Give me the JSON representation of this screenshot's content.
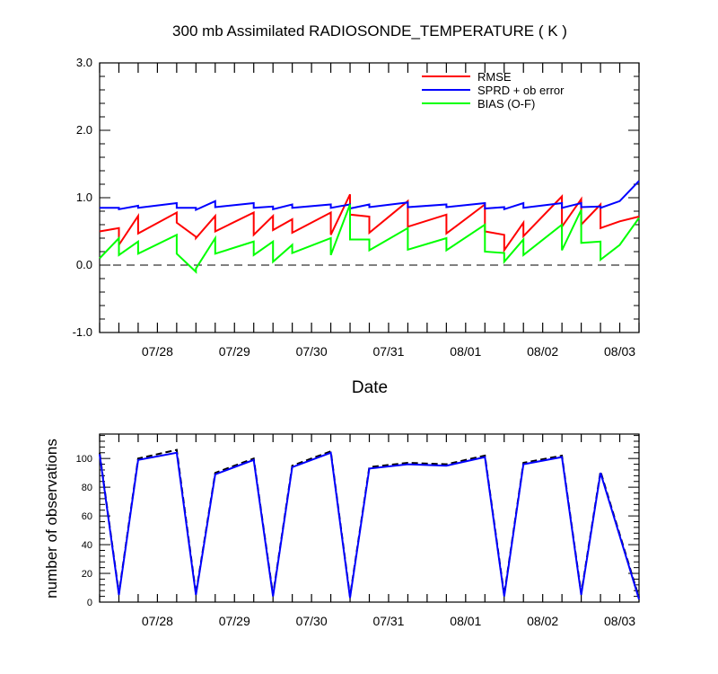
{
  "chart_data": [
    {
      "type": "line",
      "title": "300 mb Assimilated RADIOSONDE_TEMPERATURE ( K )",
      "xlabel": "Date",
      "ylabel": "",
      "x_tick_labels": [
        {
          "x": 1.5,
          "label": "07/28"
        },
        {
          "x": 2.5,
          "label": "07/29"
        },
        {
          "x": 3.5,
          "label": "07/30"
        },
        {
          "x": 4.5,
          "label": "07/31"
        },
        {
          "x": 5.5,
          "label": "08/01"
        },
        {
          "x": 6.5,
          "label": "08/02"
        },
        {
          "x": 7.5,
          "label": "08/03"
        }
      ],
      "xlim": [
        0.75,
        7.75
      ],
      "ylim": [
        -1.0,
        3.0
      ],
      "y_ticks": [
        -1.0,
        0.0,
        1.0,
        2.0,
        3.0
      ],
      "y_tick_labels": [
        "-1.0",
        "0.0",
        "1.0",
        "2.0",
        "3.0"
      ],
      "reference_line": {
        "y": 0.0,
        "style": "dashed"
      },
      "legend_position": "top-right",
      "series": [
        {
          "name": "RMSE",
          "color": "#ff0000",
          "points": [
            [
              0.75,
              0.5
            ],
            [
              1.0,
              0.55
            ],
            [
              1.0,
              0.3
            ],
            [
              1.25,
              0.73
            ],
            [
              1.25,
              0.47
            ],
            [
              1.75,
              0.78
            ],
            [
              1.75,
              0.63
            ],
            [
              2.0,
              0.42
            ],
            [
              2.0,
              0.4
            ],
            [
              2.25,
              0.73
            ],
            [
              2.25,
              0.5
            ],
            [
              2.75,
              0.78
            ],
            [
              2.75,
              0.45
            ],
            [
              3.0,
              0.73
            ],
            [
              3.0,
              0.52
            ],
            [
              3.25,
              0.68
            ],
            [
              3.25,
              0.48
            ],
            [
              3.75,
              0.78
            ],
            [
              3.75,
              0.45
            ],
            [
              4.0,
              1.05
            ],
            [
              4.0,
              0.75
            ],
            [
              4.25,
              0.72
            ],
            [
              4.25,
              0.48
            ],
            [
              4.75,
              0.95
            ],
            [
              4.75,
              0.57
            ],
            [
              5.25,
              0.75
            ],
            [
              5.25,
              0.47
            ],
            [
              5.75,
              0.9
            ],
            [
              5.75,
              0.5
            ],
            [
              6.0,
              0.45
            ],
            [
              6.0,
              0.22
            ],
            [
              6.25,
              0.63
            ],
            [
              6.25,
              0.43
            ],
            [
              6.75,
              1.02
            ],
            [
              6.75,
              0.57
            ],
            [
              7.0,
              0.98
            ],
            [
              7.0,
              0.6
            ],
            [
              7.25,
              0.9
            ],
            [
              7.25,
              0.55
            ],
            [
              7.5,
              0.65
            ],
            [
              7.75,
              0.72
            ]
          ]
        },
        {
          "name": "SPRD + ob error",
          "color": "#0000ff",
          "points": [
            [
              0.75,
              0.85
            ],
            [
              1.0,
              0.85
            ],
            [
              1.0,
              0.83
            ],
            [
              1.25,
              0.88
            ],
            [
              1.25,
              0.85
            ],
            [
              1.75,
              0.92
            ],
            [
              1.75,
              0.85
            ],
            [
              2.0,
              0.85
            ],
            [
              2.0,
              0.82
            ],
            [
              2.25,
              0.95
            ],
            [
              2.25,
              0.86
            ],
            [
              2.75,
              0.92
            ],
            [
              2.75,
              0.85
            ],
            [
              3.0,
              0.87
            ],
            [
              3.0,
              0.83
            ],
            [
              3.25,
              0.9
            ],
            [
              3.25,
              0.85
            ],
            [
              3.75,
              0.9
            ],
            [
              3.75,
              0.85
            ],
            [
              4.0,
              0.9
            ],
            [
              4.0,
              0.84
            ],
            [
              4.25,
              0.9
            ],
            [
              4.25,
              0.86
            ],
            [
              4.75,
              0.93
            ],
            [
              4.75,
              0.86
            ],
            [
              5.25,
              0.9
            ],
            [
              5.25,
              0.86
            ],
            [
              5.75,
              0.92
            ],
            [
              5.75,
              0.84
            ],
            [
              6.0,
              0.86
            ],
            [
              6.0,
              0.83
            ],
            [
              6.25,
              0.92
            ],
            [
              6.25,
              0.85
            ],
            [
              6.75,
              0.92
            ],
            [
              6.75,
              0.85
            ],
            [
              7.0,
              0.92
            ],
            [
              7.0,
              0.86
            ],
            [
              7.25,
              0.87
            ],
            [
              7.25,
              0.85
            ],
            [
              7.5,
              0.95
            ],
            [
              7.75,
              1.25
            ]
          ]
        },
        {
          "name": "BIAS (O-F)",
          "color": "#00ff00",
          "points": [
            [
              0.75,
              0.1
            ],
            [
              1.0,
              0.4
            ],
            [
              1.0,
              0.15
            ],
            [
              1.25,
              0.35
            ],
            [
              1.25,
              0.17
            ],
            [
              1.75,
              0.45
            ],
            [
              1.75,
              0.17
            ],
            [
              2.0,
              -0.1
            ],
            [
              2.0,
              -0.05
            ],
            [
              2.25,
              0.4
            ],
            [
              2.25,
              0.17
            ],
            [
              2.75,
              0.35
            ],
            [
              2.75,
              0.15
            ],
            [
              3.0,
              0.35
            ],
            [
              3.0,
              0.05
            ],
            [
              3.25,
              0.3
            ],
            [
              3.25,
              0.18
            ],
            [
              3.75,
              0.4
            ],
            [
              3.75,
              0.15
            ],
            [
              4.0,
              0.9
            ],
            [
              4.0,
              0.38
            ],
            [
              4.25,
              0.38
            ],
            [
              4.25,
              0.22
            ],
            [
              4.75,
              0.55
            ],
            [
              4.75,
              0.23
            ],
            [
              5.25,
              0.4
            ],
            [
              5.25,
              0.22
            ],
            [
              5.75,
              0.6
            ],
            [
              5.75,
              0.2
            ],
            [
              6.0,
              0.18
            ],
            [
              6.0,
              0.05
            ],
            [
              6.25,
              0.38
            ],
            [
              6.25,
              0.15
            ],
            [
              6.75,
              0.6
            ],
            [
              6.75,
              0.22
            ],
            [
              7.0,
              0.82
            ],
            [
              7.0,
              0.33
            ],
            [
              7.25,
              0.35
            ],
            [
              7.25,
              0.08
            ],
            [
              7.5,
              0.3
            ],
            [
              7.75,
              0.7
            ]
          ]
        }
      ]
    },
    {
      "type": "line",
      "title": "",
      "xlabel": "",
      "ylabel": "number of observations",
      "x_tick_labels": [
        {
          "x": 1.5,
          "label": "07/28"
        },
        {
          "x": 2.5,
          "label": "07/29"
        },
        {
          "x": 3.5,
          "label": "07/30"
        },
        {
          "x": 4.5,
          "label": "07/31"
        },
        {
          "x": 5.5,
          "label": "08/01"
        },
        {
          "x": 6.5,
          "label": "08/02"
        },
        {
          "x": 7.5,
          "label": "08/03"
        }
      ],
      "xlim": [
        0.75,
        7.75
      ],
      "ylim": [
        0,
        117
      ],
      "y_ticks": [
        0,
        20,
        40,
        60,
        80,
        100
      ],
      "y_tick_labels": [
        "0",
        "20",
        "40",
        "60",
        "80",
        "100"
      ],
      "series": [
        {
          "color": "#000000",
          "dash": "dashed",
          "points": [
            [
              0.75,
              104
            ],
            [
              1.0,
              6
            ],
            [
              1.25,
              100
            ],
            [
              1.75,
              106
            ],
            [
              2.0,
              6
            ],
            [
              2.25,
              90
            ],
            [
              2.75,
              100
            ],
            [
              3.0,
              5
            ],
            [
              3.25,
              95
            ],
            [
              3.75,
              105
            ],
            [
              4.0,
              4
            ],
            [
              4.25,
              94
            ],
            [
              4.75,
              97
            ],
            [
              5.25,
              96
            ],
            [
              5.75,
              102
            ],
            [
              6.0,
              5
            ],
            [
              6.25,
              97
            ],
            [
              6.75,
              102
            ],
            [
              7.0,
              6
            ],
            [
              7.25,
              91
            ],
            [
              7.75,
              3
            ]
          ]
        },
        {
          "color": "#0000ff",
          "points": [
            [
              0.75,
              103
            ],
            [
              1.0,
              5
            ],
            [
              1.25,
              99
            ],
            [
              1.75,
              104
            ],
            [
              2.0,
              5
            ],
            [
              2.25,
              89
            ],
            [
              2.75,
              99
            ],
            [
              3.0,
              4
            ],
            [
              3.25,
              94
            ],
            [
              3.75,
              104
            ],
            [
              4.0,
              3
            ],
            [
              4.25,
              93
            ],
            [
              4.75,
              96
            ],
            [
              5.25,
              95
            ],
            [
              5.75,
              101
            ],
            [
              6.0,
              4
            ],
            [
              6.25,
              96
            ],
            [
              6.75,
              101
            ],
            [
              7.0,
              5
            ],
            [
              7.25,
              90
            ],
            [
              7.75,
              2
            ]
          ]
        }
      ]
    }
  ]
}
